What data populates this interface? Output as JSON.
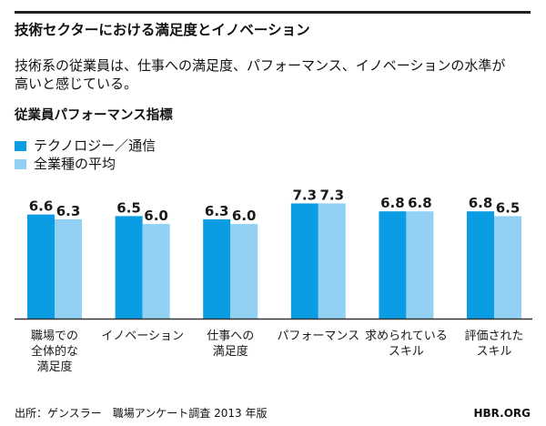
{
  "header": {
    "title": "技術セクターにおける満足度とイノベーション",
    "subtitle_lines": [
      "技術系の従業員は、仕事への満足度、パフォーマンス、イノベーションの水準が",
      "高いと感じている。"
    ],
    "section_heading": "従業員パフォーマンス指標"
  },
  "legend": {
    "items": [
      {
        "label": "テクノロジー／通信",
        "color": "#0A9DE3"
      },
      {
        "label": "全業種の平均",
        "color": "#92D1F3"
      }
    ]
  },
  "footer": {
    "source": "出所：ゲンスラー　職場アンケート調査 2013 年版",
    "brand": "HBR.ORG"
  },
  "chart_data": {
    "type": "bar",
    "title": "従業員パフォーマンス指標",
    "xlabel": "",
    "ylabel": "",
    "ylim": [
      0,
      8
    ],
    "grid": false,
    "legend_position": "top-left",
    "categories": [
      "職場での全体的な満足度",
      "イノベーション",
      "仕事への満足度",
      "パフォーマンス",
      "求められているスキル",
      "評価されたスキル"
    ],
    "category_label_lines": [
      [
        "職場での",
        "全体的な",
        "満足度"
      ],
      [
        "イノベーション"
      ],
      [
        "仕事への",
        "満足度"
      ],
      [
        "パフォーマンス"
      ],
      [
        "求められている",
        "スキル"
      ],
      [
        "評価された",
        "スキル"
      ]
    ],
    "series": [
      {
        "name": "テクノロジー／通信",
        "color": "#0A9DE3",
        "values": [
          6.6,
          6.5,
          6.3,
          7.3,
          6.8,
          6.8
        ],
        "data_labels": [
          "6.6",
          "6.5",
          "6.3",
          "7.3",
          "6.8",
          "6.8"
        ]
      },
      {
        "name": "全業種の平均",
        "color": "#92D1F3",
        "values": [
          6.3,
          6.0,
          6.0,
          7.3,
          6.8,
          6.5
        ],
        "data_labels": [
          "6.3",
          "6.0",
          "6.0",
          "7.3",
          "6.8",
          "6.5"
        ]
      }
    ]
  }
}
